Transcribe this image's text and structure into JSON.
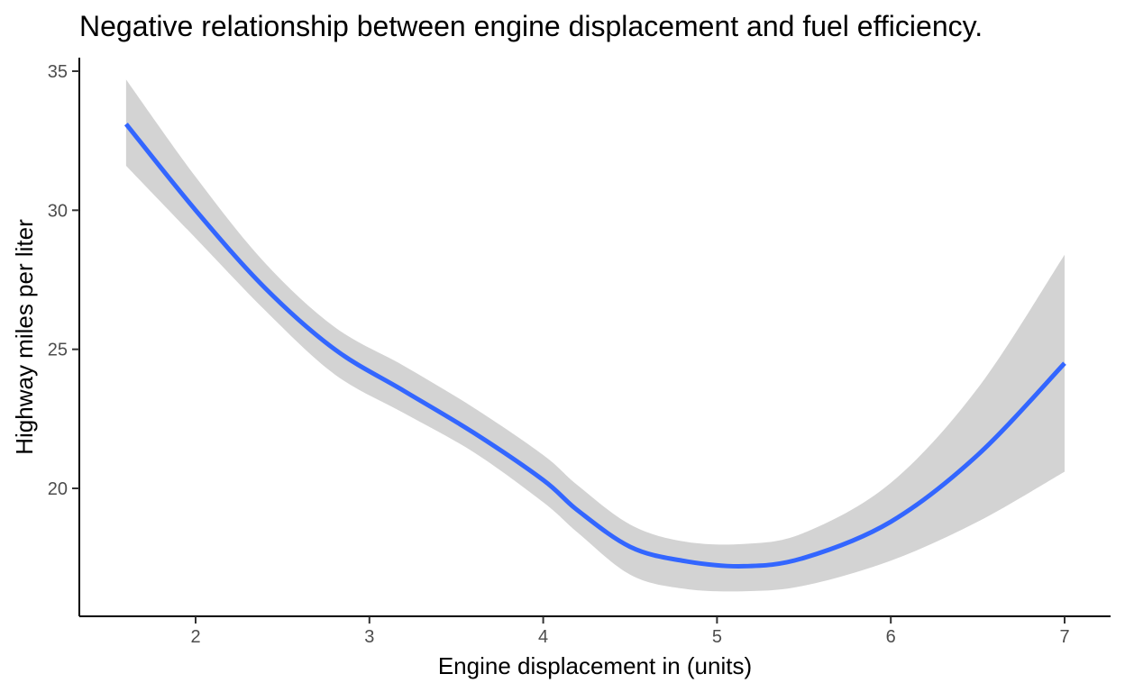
{
  "chart_data": {
    "type": "line",
    "title": "Negative relationship between engine displacement and fuel efficiency.",
    "xlabel": "Engine displacement in (units)",
    "ylabel": "Highway miles per liter",
    "xlim": [
      1.6,
      7.0
    ],
    "ylim": [
      15.5,
      35.5
    ],
    "x_ticks": [
      2,
      3,
      4,
      5,
      6,
      7
    ],
    "y_ticks": [
      20,
      25,
      30,
      35
    ],
    "x_tick_labels": [
      "2",
      "3",
      "4",
      "5",
      "6",
      "7"
    ],
    "y_tick_labels": [
      "20",
      "25",
      "30",
      "35"
    ],
    "grid": false,
    "legend": "none",
    "series": [
      {
        "kind": "smooth",
        "color": "#3366FF",
        "band_color": "#D3D3D3",
        "x": [
          1.6,
          2.0,
          2.4,
          2.8,
          3.2,
          3.6,
          4.0,
          4.2,
          4.5,
          4.8,
          5.15,
          5.5,
          6.0,
          6.5,
          7.0
        ],
        "y": [
          33.1,
          30.0,
          27.2,
          25.0,
          23.5,
          22.0,
          20.3,
          19.2,
          17.9,
          17.4,
          17.2,
          17.5,
          18.8,
          21.2,
          24.5
        ],
        "lower": [
          31.6,
          29.0,
          26.4,
          24.1,
          22.7,
          21.3,
          19.5,
          18.4,
          16.9,
          16.4,
          16.3,
          16.5,
          17.4,
          18.8,
          20.6
        ],
        "upper": [
          34.7,
          31.2,
          28.1,
          25.8,
          24.4,
          22.9,
          21.2,
          20.1,
          18.7,
          18.1,
          18.0,
          18.4,
          20.2,
          23.6,
          28.4
        ]
      }
    ]
  }
}
